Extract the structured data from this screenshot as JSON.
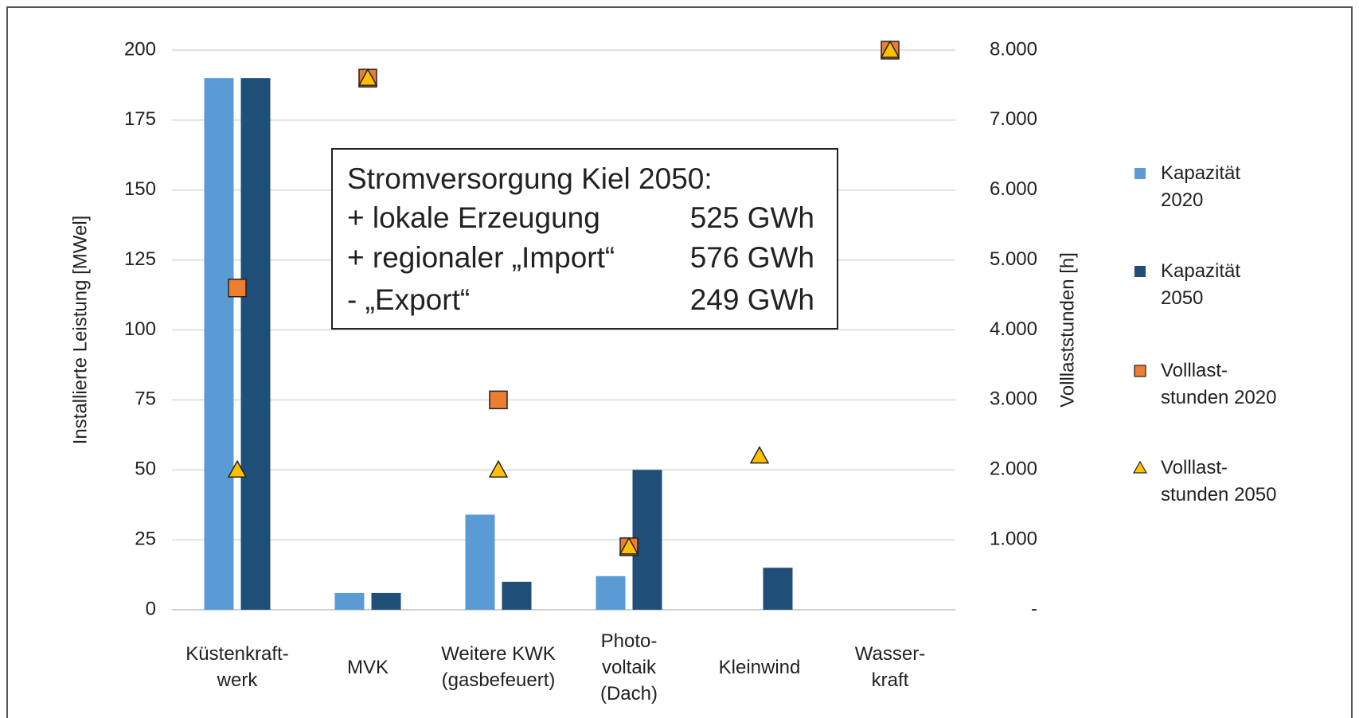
{
  "chart_data": {
    "type": "bar",
    "categories": [
      "Küstenkraft-\nwerk",
      "MVK",
      "Weitere KWK\n(gasbefeuert)",
      "Photo-\nvoltaik\n(Dach)",
      "Kleinwind",
      "Wasser-\nkraft"
    ],
    "y_label": "Installierte Leistung [MWel]",
    "y2_label": "Volllaststunden [h]",
    "ylim": [
      0,
      200
    ],
    "yticks": [
      0,
      25,
      50,
      75,
      100,
      125,
      150,
      175,
      200
    ],
    "y2lim": [
      0,
      8000
    ],
    "y2ticks": [
      {
        "value": 0,
        "label": "-"
      },
      {
        "value": 1000,
        "label": "1.000"
      },
      {
        "value": 2000,
        "label": "2.000"
      },
      {
        "value": 3000,
        "label": "3.000"
      },
      {
        "value": 4000,
        "label": "4.000"
      },
      {
        "value": 5000,
        "label": "5.000"
      },
      {
        "value": 6000,
        "label": "6.000"
      },
      {
        "value": 7000,
        "label": "7.000"
      },
      {
        "value": 8000,
        "label": "8.000"
      }
    ],
    "grid": true,
    "legend": "right",
    "series": [
      {
        "name": "Kapazität\n2020",
        "type": "bar",
        "color": "#5b9bd5",
        "values": [
          190,
          6,
          34,
          12,
          0,
          0
        ]
      },
      {
        "name": "Kapazität\n2050",
        "type": "bar",
        "color": "#1f4e79",
        "values": [
          190,
          6,
          10,
          50,
          15,
          0
        ]
      },
      {
        "name": "Volllast-\nstunden 2020",
        "type": "scatter",
        "marker": "square",
        "axis": "y2",
        "color": "#ed7d31",
        "values": [
          4600,
          7600,
          3000,
          900,
          null,
          8000
        ]
      },
      {
        "name": "Volllast-\nstunden 2050",
        "type": "scatter",
        "marker": "triangle",
        "axis": "y2",
        "color": "#ffc000",
        "values": [
          2000,
          7600,
          2000,
          900,
          2200,
          8000
        ]
      }
    ],
    "annotation": {
      "title": "Stromversorgung Kiel 2050:",
      "rows": [
        {
          "label": "+ lokale Erzeugung",
          "value": "525 GWh"
        },
        {
          "label": "+ regionaler „Import“",
          "value": "576 GWh"
        },
        {
          "label": "- „Export“",
          "value": "249 GWh"
        }
      ]
    }
  }
}
